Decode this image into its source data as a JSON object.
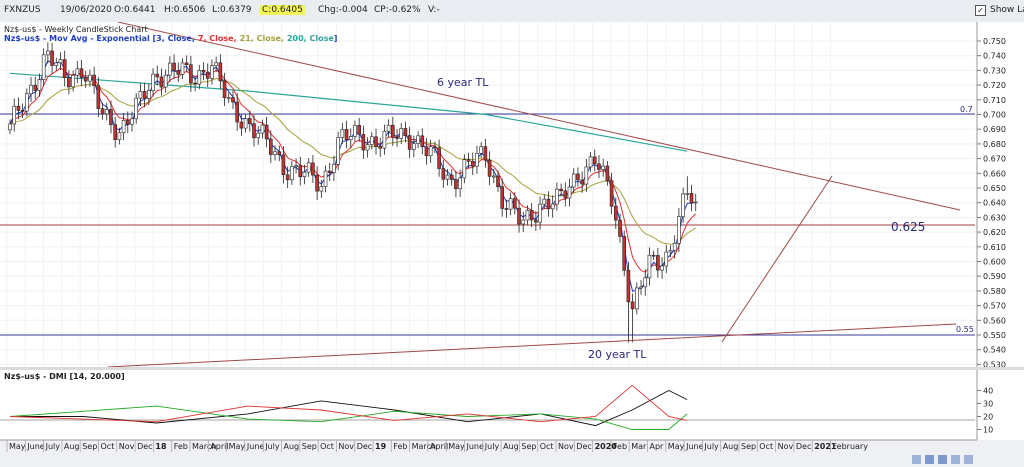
{
  "toolbar": {
    "symbol": "FXNZUS",
    "date": "19/06/2020",
    "open": "O:0.6441",
    "high": "H:0.6506",
    "low": "L:0.6379",
    "close": "C:0.6405",
    "change": "Chg:-0.004",
    "change_pct": "CP:-0.62%",
    "v": "V:-",
    "show_last": "Show Last",
    "show_last_checked": "✓"
  },
  "main_chart": {
    "title": "Nz$-us$ - Weekly CandleStick Chart",
    "indicator_prefix": "Nz$-us$ - Mov Avg - Exponential [",
    "ma1": "3, Close,",
    "ma2": "7, Close,",
    "ma3": "21, Close,",
    "ma4": "200, Close",
    "indicator_suffix": "]",
    "ma_colors": [
      "#1f3fbf",
      "#e03030",
      "#a8a03a",
      "#2aa59a"
    ],
    "annotations": {
      "tl6": "6 year TL",
      "tl20": "20 year TL",
      "level_0625": "0.625",
      "label_07": "0.7",
      "label_055": "0.55"
    },
    "y_ticks": [
      "0.750",
      "0.740",
      "0.730",
      "0.720",
      "0.710",
      "0.700",
      "0.690",
      "0.680",
      "0.670",
      "0.660",
      "0.650",
      "0.640",
      "0.630",
      "0.620",
      "0.610",
      "0.600",
      "0.590",
      "0.580",
      "0.570",
      "0.560",
      "0.550",
      "0.540",
      "0.530"
    ]
  },
  "dmi_chart": {
    "title": "Nz$-us$ - DMI [14, 20.000]",
    "y_ticks": [
      "40",
      "30",
      "20",
      "10"
    ]
  },
  "x_axis": {
    "labels": [
      "May",
      "June",
      "July",
      "Aug",
      "Sep",
      "Oct",
      "Nov",
      "Dec",
      "18",
      "Feb",
      "March",
      "April",
      "May",
      "June",
      "July",
      "Aug",
      "Sep",
      "Oct",
      "Nov",
      "Dec",
      "19",
      "Feb",
      "March",
      "April",
      "May",
      "June",
      "July",
      "Aug",
      "Sep",
      "Oct",
      "Nov",
      "Dec",
      "2020",
      "Feb",
      "Mar",
      "Apr",
      "May",
      "June",
      "July",
      "Aug",
      "Sep",
      "Oct",
      "Nov",
      "Dec",
      "2021",
      "February"
    ],
    "bold": [
      "18",
      "19",
      "2020",
      "2021"
    ]
  },
  "chart_data": {
    "type": "candlestick",
    "timeframe": "weekly",
    "levels": [
      0.7,
      0.625,
      0.55
    ],
    "trendlines": [
      {
        "name": "6 year TL",
        "from": [
          "2017-06",
          0.758
        ],
        "to": [
          "2021-01",
          0.637
        ]
      },
      {
        "name": "20 year TL",
        "from": [
          "2017-05",
          0.53
        ],
        "to": [
          "2021-02",
          0.557
        ]
      },
      {
        "from": [
          "2020-03",
          0.545
        ],
        "to": [
          "2020-08",
          0.658
        ]
      }
    ],
    "close_path": [
      [
        "2017-05",
        0.69
      ],
      [
        "2017-06",
        0.715
      ],
      [
        "2017-07",
        0.74
      ],
      [
        "2017-08",
        0.725
      ],
      [
        "2017-09",
        0.732
      ],
      [
        "2017-10",
        0.7
      ],
      [
        "2017-11",
        0.69
      ],
      [
        "2017-12",
        0.705
      ],
      [
        "2018-01",
        0.728
      ],
      [
        "2018-02",
        0.73
      ],
      [
        "2018-03",
        0.725
      ],
      [
        "2018-04",
        0.735
      ],
      [
        "2018-05",
        0.705
      ],
      [
        "2018-06",
        0.695
      ],
      [
        "2018-07",
        0.68
      ],
      [
        "2018-08",
        0.665
      ],
      [
        "2018-09",
        0.66
      ],
      [
        "2018-10",
        0.652
      ],
      [
        "2018-11",
        0.683
      ],
      [
        "2018-12",
        0.685
      ],
      [
        "2019-01",
        0.682
      ],
      [
        "2019-02",
        0.685
      ],
      [
        "2019-03",
        0.686
      ],
      [
        "2019-04",
        0.672
      ],
      [
        "2019-05",
        0.655
      ],
      [
        "2019-06",
        0.665
      ],
      [
        "2019-07",
        0.672
      ],
      [
        "2019-08",
        0.64
      ],
      [
        "2019-09",
        0.625
      ],
      [
        "2019-10",
        0.64
      ],
      [
        "2019-11",
        0.64
      ],
      [
        "2019-12",
        0.66
      ],
      [
        "2020-01",
        0.668
      ],
      [
        "2020-02",
        0.64
      ],
      [
        "2020-03",
        0.565
      ],
      [
        "2020-04",
        0.6
      ],
      [
        "2020-05",
        0.605
      ],
      [
        "2020-06",
        0.645
      ],
      [
        "2020-06-19",
        0.6405
      ]
    ],
    "ema200": [
      [
        "2017-05",
        0.728
      ],
      [
        "2018-06",
        0.716
      ],
      [
        "2019-07",
        0.7
      ],
      [
        "2020-06",
        0.675
      ]
    ],
    "dmi": {
      "params": "14, 20.000",
      "ylim": [
        5,
        45
      ],
      "adx": [
        [
          "2017-05",
          20
        ],
        [
          "2017-09",
          20
        ],
        [
          "2018-01",
          15
        ],
        [
          "2018-06",
          22
        ],
        [
          "2018-10",
          32
        ],
        [
          "2019-02",
          25
        ],
        [
          "2019-06",
          16
        ],
        [
          "2019-10",
          22
        ],
        [
          "2020-01",
          13
        ],
        [
          "2020-03",
          25
        ],
        [
          "2020-05",
          40
        ],
        [
          "2020-06",
          33
        ]
      ],
      "plus_di": [
        [
          "2017-05",
          20
        ],
        [
          "2017-09",
          24
        ],
        [
          "2018-01",
          28
        ],
        [
          "2018-06",
          18
        ],
        [
          "2018-10",
          16
        ],
        [
          "2019-02",
          24
        ],
        [
          "2019-06",
          20
        ],
        [
          "2019-10",
          22
        ],
        [
          "2020-01",
          18
        ],
        [
          "2020-03",
          10
        ],
        [
          "2020-05",
          10
        ],
        [
          "2020-06",
          22
        ]
      ],
      "minus_di": [
        [
          "2017-05",
          20
        ],
        [
          "2017-09",
          18
        ],
        [
          "2018-01",
          16
        ],
        [
          "2018-06",
          28
        ],
        [
          "2018-10",
          25
        ],
        [
          "2019-02",
          17
        ],
        [
          "2019-06",
          22
        ],
        [
          "2019-10",
          16
        ],
        [
          "2020-01",
          20
        ],
        [
          "2020-03",
          44
        ],
        [
          "2020-05",
          20
        ],
        [
          "2020-06",
          17
        ]
      ]
    }
  }
}
